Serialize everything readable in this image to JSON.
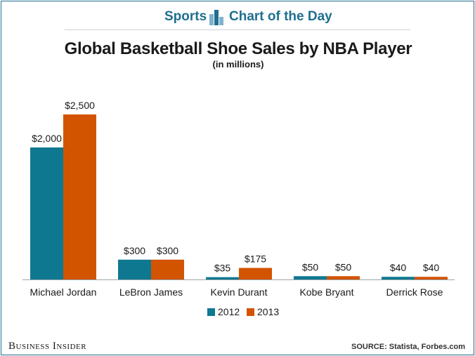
{
  "header": {
    "section": "Sports",
    "feature": "Chart of the Day"
  },
  "chart_data": {
    "type": "bar",
    "title": "Global Basketball Shoe Sales by NBA Player",
    "subtitle": "(in millions)",
    "categories": [
      "Michael Jordan",
      "LeBron James",
      "Kevin Durant",
      "Kobe Bryant",
      "Derrick Rose"
    ],
    "series": [
      {
        "name": "2012",
        "color": "#0f7891",
        "values": [
          2000,
          300,
          35,
          50,
          40
        ],
        "labels": [
          "$2,000",
          "$300",
          "$35",
          "$50",
          "$40"
        ]
      },
      {
        "name": "2013",
        "color": "#d35400",
        "values": [
          2500,
          300,
          175,
          50,
          40
        ],
        "labels": [
          "$2,500",
          "$300",
          "$175",
          "$50",
          "$40"
        ]
      }
    ],
    "ylim": [
      0,
      2500
    ],
    "xlabel": "",
    "ylabel": "",
    "legend": "bottom-center",
    "grid": false
  },
  "footer": {
    "brand": "Business Insider",
    "source": "SOURCE: Statista, Forbes.com"
  }
}
